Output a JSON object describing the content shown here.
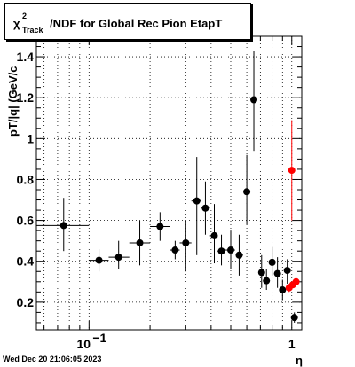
{
  "title": {
    "symbol": "χ",
    "superscript": "2",
    "subscript": "Track",
    "text": "/NDF for Global Rec Pion EtapT"
  },
  "footer": "Wed Dec 20 21:06:05 2023",
  "chart_data": {
    "type": "scatter",
    "title": "χ²Track/NDF for Global Rec Pion EtapT",
    "xlabel": "η",
    "ylabel": "pT/|q| (GeV/c",
    "xscale": "log",
    "xlim": [
      0.055,
      1.12
    ],
    "ylim": [
      0.065,
      1.5
    ],
    "grid": true,
    "xticks": [
      {
        "value": 0.1,
        "base": "10",
        "exp": "−1"
      },
      {
        "value": 1,
        "label": "1"
      }
    ],
    "yticks": [
      {
        "value": 0.2,
        "label": "0.2"
      },
      {
        "value": 0.4,
        "label": "0.4"
      },
      {
        "value": 0.6,
        "label": "0.6"
      },
      {
        "value": 0.8,
        "label": "0.8"
      },
      {
        "value": 1.0,
        "label": "1"
      },
      {
        "value": 1.2,
        "label": "1.2"
      },
      {
        "value": 1.4,
        "label": "1.4"
      }
    ],
    "series": [
      {
        "color": "#000000",
        "points": [
          {
            "x": 0.075,
            "y": 0.575,
            "xerr": [
              0.055,
              0.1
            ],
            "yerr": [
              0.45,
              0.71
            ]
          },
          {
            "x": 0.112,
            "y": 0.405,
            "xerr": [
              0.1,
              0.125
            ],
            "yerr": [
              0.35,
              0.46
            ]
          },
          {
            "x": 0.14,
            "y": 0.42,
            "xerr": [
              0.125,
              0.158
            ],
            "yerr": [
              0.36,
              0.5
            ]
          },
          {
            "x": 0.178,
            "y": 0.49,
            "xerr": [
              0.158,
              0.2
            ],
            "yerr": [
              0.38,
              0.6
            ]
          },
          {
            "x": 0.224,
            "y": 0.57,
            "xerr": [
              0.2,
              0.25
            ],
            "yerr": [
              0.5,
              0.64
            ]
          },
          {
            "x": 0.266,
            "y": 0.455,
            "xerr": [
              0.25,
              0.28
            ],
            "yerr": [
              0.41,
              0.5
            ]
          },
          {
            "x": 0.3,
            "y": 0.49,
            "xerr": [
              0.28,
              0.32
            ],
            "yerr": [
              0.35,
              0.6
            ]
          },
          {
            "x": 0.34,
            "y": 0.695,
            "xerr": [
              0.32,
              0.355
            ],
            "yerr": [
              0.43,
              0.91
            ]
          },
          {
            "x": 0.375,
            "y": 0.66,
            "xerr": [
              0.355,
              0.395
            ],
            "yerr": [
              0.53,
              0.79
            ]
          },
          {
            "x": 0.415,
            "y": 0.525,
            "xerr": [
              0.395,
              0.43
            ],
            "yerr": [
              0.39,
              0.68
            ]
          },
          {
            "x": 0.45,
            "y": 0.45,
            "xerr": [
              0.43,
              0.465
            ],
            "yerr": [
              0.38,
              0.53
            ]
          },
          {
            "x": 0.5,
            "y": 0.455,
            "xerr": [
              0.47,
              0.525
            ],
            "yerr": [
              0.36,
              0.55
            ]
          },
          {
            "x": 0.55,
            "y": 0.43,
            "xerr": [
              0.53,
              0.575
            ],
            "yerr": [
              0.33,
              0.53
            ]
          },
          {
            "x": 0.6,
            "y": 0.74,
            "xerr": [
              0.58,
              0.62
            ],
            "yerr": [
              0.58,
              0.92
            ]
          },
          {
            "x": 0.65,
            "y": 1.19,
            "xerr": [
              0.635,
              0.665
            ],
            "yerr": [
              0.94,
              1.43
            ]
          },
          {
            "x": 0.71,
            "y": 0.345,
            "xerr": [
              0.69,
              0.725
            ],
            "yerr": [
              0.27,
              0.43
            ]
          },
          {
            "x": 0.75,
            "y": 0.305,
            "xerr": [
              0.735,
              0.765
            ],
            "yerr": [
              0.26,
              0.36
            ]
          },
          {
            "x": 0.8,
            "y": 0.395,
            "xerr": [
              0.785,
              0.815
            ],
            "yerr": [
              0.33,
              0.47
            ]
          },
          {
            "x": 0.85,
            "y": 0.34,
            "xerr": [
              0.835,
              0.865
            ],
            "yerr": [
              0.27,
              0.42
            ]
          },
          {
            "x": 0.9,
            "y": 0.26,
            "xerr": [
              0.885,
              0.915
            ],
            "yerr": [
              0.21,
              0.31
            ]
          },
          {
            "x": 0.95,
            "y": 0.355,
            "xerr": [
              0.935,
              0.965
            ],
            "yerr": [
              0.29,
              0.41
            ]
          },
          {
            "x": 1.03,
            "y": 0.125,
            "xerr": [
              1.01,
              1.05
            ],
            "yerr": [
              0.1,
              0.15
            ]
          }
        ]
      },
      {
        "color": "#ff0000",
        "points": [
          {
            "x": 1.0,
            "y": 0.845,
            "xerr": [
              0.99,
              1.01
            ],
            "yerr": [
              0.6,
              1.09
            ]
          },
          {
            "x": 0.97,
            "y": 0.27,
            "xerr": [
              0.955,
              0.985
            ],
            "yerr": [
              0.25,
              0.29
            ]
          },
          {
            "x": 1.01,
            "y": 0.285,
            "xerr": [
              1.0,
              1.02
            ],
            "yerr": [
              0.27,
              0.3
            ]
          },
          {
            "x": 1.05,
            "y": 0.3,
            "xerr": [
              1.04,
              1.06
            ],
            "yerr": [
              0.29,
              0.31
            ]
          }
        ]
      }
    ]
  }
}
